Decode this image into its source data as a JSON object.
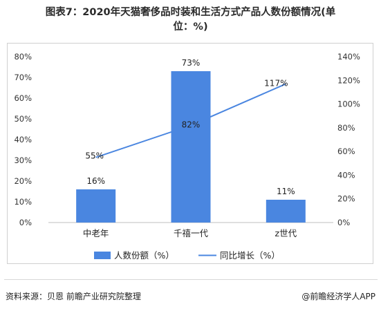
{
  "title": {
    "line1": "图表7：2020年天猫奢侈品时装和生活方式产品人数份额情况(单",
    "line2": "位：%)"
  },
  "colors": {
    "bar": "#4a86e0",
    "line": "#4a86e0"
  },
  "chart_data": {
    "type": "bar",
    "categories": [
      "中老年",
      "千禧一代",
      "z世代"
    ],
    "series": [
      {
        "name": "人数份额（%）",
        "type": "bar",
        "axis": "left",
        "values": [
          16,
          73,
          11
        ],
        "labels": [
          "16%",
          "73%",
          "11%"
        ]
      },
      {
        "name": "同比增长（%）",
        "type": "line",
        "axis": "right",
        "values": [
          55,
          82,
          117
        ],
        "labels": [
          "55%",
          "82%",
          "117%"
        ]
      }
    ],
    "y_left": {
      "min": 0,
      "max": 80,
      "step": 10,
      "tick_labels": [
        "0%",
        "10%",
        "20%",
        "30%",
        "40%",
        "50%",
        "60%",
        "70%",
        "80%"
      ]
    },
    "y_right": {
      "min": 0,
      "max": 140,
      "step": 20,
      "tick_labels": [
        "0%",
        "20%",
        "40%",
        "60%",
        "80%",
        "100%",
        "120%",
        "140%"
      ]
    },
    "grid": false,
    "legend": "bottom"
  },
  "footer": {
    "source": "资料来源：贝恩 前瞻产业研究院整理",
    "brand": "@前瞻经济学人APP"
  }
}
